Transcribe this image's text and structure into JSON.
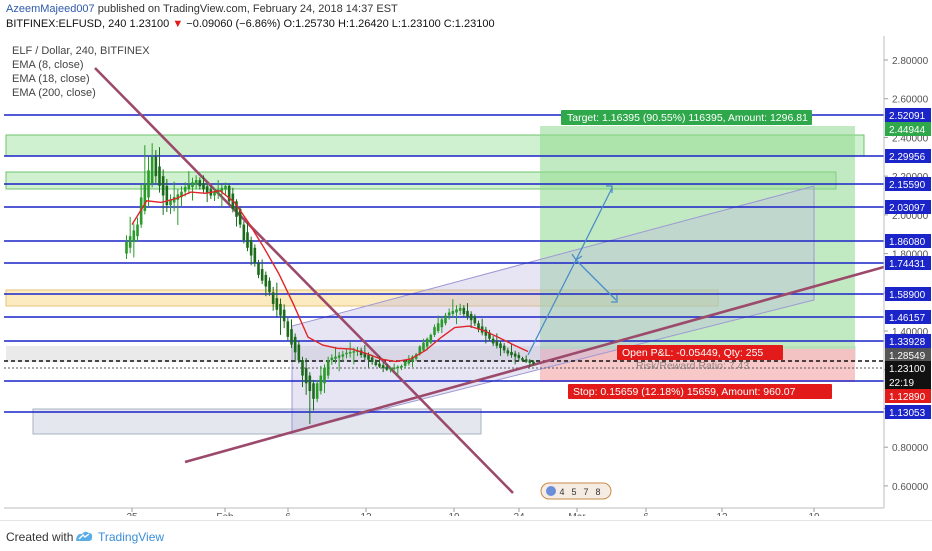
{
  "header": {
    "publisher": "AzeemMajeed007",
    "published_text": " published on TradingView.com, February 24, 2018 14:37 EST",
    "symbol_interval": "BITFINEX:ELFUSD, 240",
    "last": "1.23100",
    "change": "−0.09060 (−6.86%)",
    "open": "O:1.25730",
    "high": "H:1.26420",
    "low": "L:1.23100",
    "close": "C:1.23100"
  },
  "legend": {
    "title": "ELF / Dollar, 240, BITFINEX",
    "ema8": "EMA (8, close)",
    "ema18": "EMA (18, close)",
    "ema200": "EMA (200, close)"
  },
  "footer": {
    "created_with": "Created with",
    "brand": "TradingView"
  },
  "colors": {
    "level_line": "#1a24c8",
    "trendline": "#9c4a6c",
    "candle_up": "#2a9a2a",
    "candle_down": "#1c6b1c",
    "ema": "#e0242a",
    "target_zone": "#90d890",
    "stop_zone": "#f6b4b4",
    "projection": "#4a8ec6"
  },
  "chart_data": {
    "type": "candlestick",
    "title": "ELF / Dollar, 240, BITFINEX",
    "y_axis_ticks": [
      "2.80000",
      "2.60000",
      "2.40000",
      "2.20000",
      "2.00000",
      "1.80000",
      "1.60000",
      "1.40000",
      "1.20000",
      "1.00000",
      "0.80000",
      "0.60000"
    ],
    "x_axis_ticks": [
      "25",
      "Feb",
      "6",
      "12",
      "19",
      "24",
      "Mar",
      "6",
      "12",
      "19"
    ],
    "ylim": [
      0.54,
      2.9
    ],
    "price_levels": [
      "2.52091",
      "2.29956",
      "2.15590",
      "2.03097",
      "1.86080",
      "1.74431",
      "1.58900",
      "1.46157",
      "1.33928",
      "1.20848",
      "1.13053"
    ],
    "price_markers": [
      {
        "label": "2.44944",
        "color": "#2ea84b"
      },
      {
        "label": "1.28549",
        "color": "#555555"
      },
      {
        "label": "1.23100",
        "color": "#111111"
      },
      {
        "label": "22:19",
        "color": "#111111"
      },
      {
        "label": "1.12890",
        "color": "#e21a1a"
      }
    ],
    "annotations": {
      "target": "Target: 1.16395 (90.55%) 116395, Amount: 1296.81",
      "open_pnl": "Open P&L: -0.05449, Qty: 255",
      "risk_reward": "Risk/Reward Ratio: 7.43",
      "stop": "Stop: 0.15659 (12.18%) 15659, Amount: 960.07"
    },
    "event_badge": [
      "4",
      "5",
      "7",
      "8"
    ],
    "series": [
      {
        "name": "ELFUSD",
        "ohlc_approx": [
          [
            1.8,
            2.05,
            1.72,
            1.95
          ],
          [
            1.95,
            2.5,
            1.9,
            2.3
          ],
          [
            2.3,
            2.4,
            1.95,
            2.05
          ],
          [
            2.05,
            2.2,
            1.92,
            2.12
          ],
          [
            2.12,
            2.25,
            2.05,
            2.18
          ],
          [
            2.18,
            2.22,
            2.05,
            2.1
          ],
          [
            2.1,
            2.2,
            2.02,
            2.15
          ],
          [
            2.15,
            2.18,
            1.9,
            1.95
          ],
          [
            1.95,
            2.0,
            1.7,
            1.75
          ],
          [
            1.75,
            1.8,
            1.55,
            1.6
          ],
          [
            1.6,
            1.68,
            1.35,
            1.45
          ],
          [
            1.45,
            1.5,
            1.2,
            1.25
          ],
          [
            1.25,
            1.3,
            0.88,
            1.05
          ],
          [
            1.05,
            1.3,
            1.0,
            1.25
          ],
          [
            1.25,
            1.33,
            1.18,
            1.28
          ],
          [
            1.28,
            1.35,
            1.22,
            1.3
          ],
          [
            1.3,
            1.34,
            1.2,
            1.24
          ],
          [
            1.24,
            1.28,
            1.18,
            1.2
          ],
          [
            1.2,
            1.24,
            1.16,
            1.22
          ],
          [
            1.22,
            1.3,
            1.19,
            1.28
          ],
          [
            1.28,
            1.4,
            1.26,
            1.38
          ],
          [
            1.38,
            1.52,
            1.35,
            1.48
          ],
          [
            1.48,
            1.58,
            1.42,
            1.52
          ],
          [
            1.52,
            1.56,
            1.4,
            1.44
          ],
          [
            1.44,
            1.48,
            1.32,
            1.36
          ],
          [
            1.36,
            1.4,
            1.26,
            1.3
          ],
          [
            1.3,
            1.34,
            1.22,
            1.26
          ],
          [
            1.26,
            1.28,
            1.21,
            1.23
          ]
        ]
      },
      {
        "name": "EMA (8, close)"
      },
      {
        "name": "EMA (18, close)"
      }
    ]
  }
}
